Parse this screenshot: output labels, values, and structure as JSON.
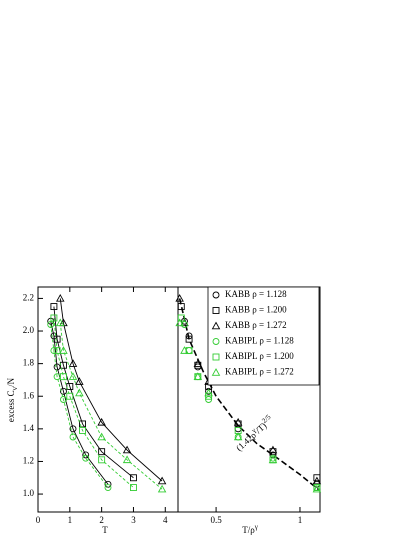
{
  "chart_data": [
    {
      "type": "line",
      "xlabel": "T",
      "ylabel": [
        "excess C",
        "v",
        "/N"
      ],
      "xlim": [
        0,
        4.4
      ],
      "ylim": [
        0.89,
        2.27
      ],
      "xticks": [
        0,
        1,
        2,
        3,
        4
      ],
      "yticks": [
        {
          "value": 1,
          "label": "1.0"
        },
        1.2,
        1.4,
        1.6,
        1.8,
        {
          "value": 2,
          "label": "2.0"
        },
        2.2
      ],
      "series": [
        {
          "marker": "circle",
          "color": "#000000",
          "dash": false,
          "x": [
            0.4,
            0.5,
            0.6,
            0.8,
            1.1,
            1.5,
            2.2
          ],
          "values": [
            2.06,
            1.97,
            1.78,
            1.63,
            1.4,
            1.24,
            1.06
          ]
        },
        {
          "marker": "square",
          "color": "#000000",
          "dash": false,
          "x": [
            0.5,
            0.6,
            0.8,
            1.0,
            1.4,
            2.0,
            3.0
          ],
          "values": [
            2.15,
            1.95,
            1.79,
            1.66,
            1.43,
            1.26,
            1.1
          ]
        },
        {
          "marker": "triangle",
          "color": "#000000",
          "dash": false,
          "x": [
            0.7,
            0.8,
            1.1,
            1.3,
            2.0,
            2.8,
            3.9
          ],
          "values": [
            2.2,
            2.05,
            1.8,
            1.69,
            1.44,
            1.27,
            1.08
          ]
        },
        {
          "marker": "circle",
          "color": "#33cc33",
          "dash": true,
          "x": [
            0.4,
            0.5,
            0.6,
            0.8,
            1.1,
            1.5,
            2.2
          ],
          "values": [
            2.04,
            1.88,
            1.72,
            1.58,
            1.35,
            1.22,
            1.04
          ]
        },
        {
          "marker": "square",
          "color": "#33cc33",
          "dash": true,
          "x": [
            0.5,
            0.6,
            0.8,
            1.0,
            1.4,
            2.0,
            3.0
          ],
          "values": [
            2.08,
            1.88,
            1.72,
            1.6,
            1.39,
            1.21,
            1.04
          ]
        },
        {
          "marker": "triangle",
          "color": "#33cc33",
          "dash": true,
          "x": [
            0.7,
            0.8,
            1.1,
            1.3,
            2.0,
            2.8,
            3.9
          ],
          "values": [
            2.05,
            1.88,
            1.72,
            1.62,
            1.35,
            1.21,
            1.03
          ]
        }
      ]
    },
    {
      "type": "scatter",
      "xlabel": [
        "T/ρ",
        "γ"
      ],
      "xscale": "log",
      "xlim": [
        0.365,
        1.18
      ],
      "ylim": [
        0.89,
        2.27
      ],
      "xticks": [
        0.5,
        1
      ],
      "legend": "upper right",
      "annotation": [
        "(1.42ρ",
        "γ",
        "/T)",
        "2/5"
      ],
      "fit": {
        "color": "#000000",
        "x": [
          0.37,
          0.4,
          0.45,
          0.5,
          0.6,
          0.7,
          0.8,
          1.0,
          1.18
        ],
        "values": [
          2.2,
          1.95,
          1.75,
          1.6,
          1.42,
          1.31,
          1.24,
          1.12,
          1.02
        ]
      },
      "series": [
        {
          "name": "KABB ρ = 1.128",
          "marker": "circle",
          "color": "#000000",
          "x": [
            0.385,
            0.4,
            0.43,
            0.47,
            0.6,
            0.8,
            1.15
          ],
          "values": [
            2.06,
            1.97,
            1.78,
            1.63,
            1.4,
            1.24,
            1.06
          ]
        },
        {
          "name": "KABB ρ = 1.200",
          "marker": "square",
          "color": "#000000",
          "x": [
            0.375,
            0.4,
            0.43,
            0.47,
            0.6,
            0.8,
            1.15
          ],
          "values": [
            2.15,
            1.95,
            1.79,
            1.66,
            1.43,
            1.26,
            1.1
          ]
        },
        {
          "name": "KABB ρ = 1.272",
          "marker": "triangle",
          "color": "#000000",
          "x": [
            0.37,
            0.385,
            0.43,
            0.47,
            0.6,
            0.8,
            1.15
          ],
          "values": [
            2.2,
            2.05,
            1.8,
            1.69,
            1.44,
            1.27,
            1.08
          ]
        },
        {
          "name": "KABIPL ρ = 1.128",
          "marker": "circle",
          "color": "#33cc33",
          "x": [
            0.385,
            0.4,
            0.43,
            0.47,
            0.6,
            0.8,
            1.15
          ],
          "values": [
            2.04,
            1.88,
            1.72,
            1.58,
            1.35,
            1.22,
            1.04
          ]
        },
        {
          "name": "KABIPL ρ = 1.200",
          "marker": "square",
          "color": "#33cc33",
          "x": [
            0.375,
            0.4,
            0.43,
            0.47,
            0.6,
            0.8,
            1.15
          ],
          "values": [
            2.08,
            1.88,
            1.72,
            1.6,
            1.39,
            1.21,
            1.04
          ]
        },
        {
          "name": "KABIPL ρ = 1.272",
          "marker": "triangle",
          "color": "#33cc33",
          "x": [
            0.37,
            0.385,
            0.43,
            0.47,
            0.6,
            0.8,
            1.15
          ],
          "values": [
            2.05,
            1.88,
            1.72,
            1.62,
            1.35,
            1.21,
            1.03
          ]
        }
      ]
    }
  ]
}
